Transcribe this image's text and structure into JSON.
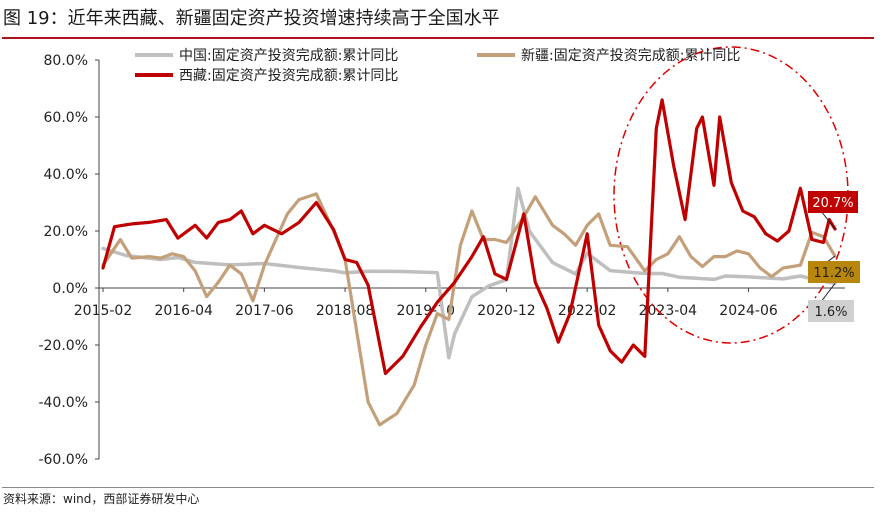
{
  "figure": {
    "title": "图 19：近年来西藏、新疆固定资产投资增速持续高于全国水平",
    "source": "资料来源：wind，西部证券研发中心"
  },
  "chart_data": {
    "type": "line",
    "title": "图 19：近年来西藏、新疆固定资产投资增速持续高于全国水平",
    "xlabel": "",
    "ylabel": "",
    "ylim": [
      -60,
      80
    ],
    "y_ticks": [
      "80.0%",
      "60.0%",
      "40.0%",
      "20.0%",
      "0.0%",
      "-20.0%",
      "-40.0%",
      "-60.0%"
    ],
    "x_range": [
      "2015-02",
      "2025-09"
    ],
    "x_ticks": [
      "2015-02",
      "2016-04",
      "2017-06",
      "2018-08",
      "2019-10",
      "2020-12",
      "2022-02",
      "2023-04",
      "2024-06"
    ],
    "legend_position": "top",
    "grid": false,
    "colors": {
      "china": "#bfbfbf",
      "xinjiang": "#c4a07a",
      "tibet": "#c00000",
      "ellipse": "#e00000"
    },
    "series": [
      {
        "name": "中国:固定资产投资完成额:累计同比",
        "key": "china",
        "points": [
          [
            "2015-02",
            13.9
          ],
          [
            "2015-06",
            11.4
          ],
          [
            "2015-12",
            10.0
          ],
          [
            "2016-03",
            10.7
          ],
          [
            "2016-06",
            9.0
          ],
          [
            "2016-12",
            8.1
          ],
          [
            "2017-06",
            8.6
          ],
          [
            "2017-12",
            7.2
          ],
          [
            "2018-06",
            6.0
          ],
          [
            "2018-08",
            5.3
          ],
          [
            "2018-12",
            5.9
          ],
          [
            "2019-06",
            5.8
          ],
          [
            "2019-12",
            5.4
          ],
          [
            "2020-02",
            -24.5
          ],
          [
            "2020-03",
            -16.1
          ],
          [
            "2020-06",
            -3.1
          ],
          [
            "2020-09",
            0.8
          ],
          [
            "2020-12",
            2.9
          ],
          [
            "2021-02",
            35.0
          ],
          [
            "2021-04",
            19.9
          ],
          [
            "2021-08",
            8.9
          ],
          [
            "2021-12",
            4.9
          ],
          [
            "2022-02",
            12.2
          ],
          [
            "2022-06",
            6.1
          ],
          [
            "2022-12",
            5.1
          ],
          [
            "2023-03",
            5.1
          ],
          [
            "2023-06",
            3.8
          ],
          [
            "2023-12",
            3.0
          ],
          [
            "2024-02",
            4.2
          ],
          [
            "2024-06",
            3.9
          ],
          [
            "2024-12",
            3.2
          ],
          [
            "2025-03",
            4.2
          ],
          [
            "2025-06",
            2.8
          ],
          [
            "2025-09",
            1.6
          ]
        ]
      },
      {
        "name": "新疆:固定资产投资完成额:累计同比",
        "key": "xinjiang",
        "points": [
          [
            "2015-02",
            8.0
          ],
          [
            "2015-05",
            17.0
          ],
          [
            "2015-07",
            10.5
          ],
          [
            "2015-10",
            11.0
          ],
          [
            "2015-12",
            10.5
          ],
          [
            "2016-02",
            12.0
          ],
          [
            "2016-04",
            11.0
          ],
          [
            "2016-06",
            6.0
          ],
          [
            "2016-08",
            -3.0
          ],
          [
            "2016-10",
            2.0
          ],
          [
            "2016-12",
            8.0
          ],
          [
            "2017-02",
            5.0
          ],
          [
            "2017-04",
            -4.5
          ],
          [
            "2017-06",
            8.0
          ],
          [
            "2017-08",
            17.0
          ],
          [
            "2017-10",
            26.0
          ],
          [
            "2017-12",
            31.0
          ],
          [
            "2018-03",
            33.0
          ],
          [
            "2018-06",
            20.0
          ],
          [
            "2018-08",
            10.0
          ],
          [
            "2018-10",
            -15.0
          ],
          [
            "2018-12",
            -40.0
          ],
          [
            "2019-02",
            -48.0
          ],
          [
            "2019-05",
            -44.0
          ],
          [
            "2019-08",
            -34.0
          ],
          [
            "2019-10",
            -20.0
          ],
          [
            "2019-12",
            -9.0
          ],
          [
            "2020-02",
            -11.0
          ],
          [
            "2020-04",
            15.0
          ],
          [
            "2020-06",
            27.0
          ],
          [
            "2020-08",
            17.0
          ],
          [
            "2020-10",
            17.0
          ],
          [
            "2020-12",
            16.0
          ],
          [
            "2021-03",
            25.0
          ],
          [
            "2021-05",
            32.0
          ],
          [
            "2021-08",
            22.0
          ],
          [
            "2021-10",
            19.0
          ],
          [
            "2021-12",
            15.0
          ],
          [
            "2022-02",
            22.0
          ],
          [
            "2022-04",
            26.0
          ],
          [
            "2022-06",
            15.0
          ],
          [
            "2022-09",
            14.5
          ],
          [
            "2022-12",
            6.0
          ],
          [
            "2023-02",
            10.0
          ],
          [
            "2023-04",
            12.0
          ],
          [
            "2023-06",
            18.0
          ],
          [
            "2023-08",
            11.0
          ],
          [
            "2023-10",
            7.5
          ],
          [
            "2023-12",
            11.0
          ],
          [
            "2024-02",
            11.0
          ],
          [
            "2024-04",
            13.0
          ],
          [
            "2024-06",
            12.0
          ],
          [
            "2024-08",
            7.0
          ],
          [
            "2024-10",
            4.0
          ],
          [
            "2024-12",
            7.0
          ],
          [
            "2025-03",
            8.0
          ],
          [
            "2025-05",
            19.5
          ],
          [
            "2025-07",
            18.0
          ],
          [
            "2025-09",
            11.2
          ]
        ]
      },
      {
        "name": "西藏:固定资产投资完成额:累计同比",
        "key": "tibet",
        "points": [
          [
            "2015-02",
            7.0
          ],
          [
            "2015-04",
            21.5
          ],
          [
            "2015-07",
            22.5
          ],
          [
            "2015-10",
            23.0
          ],
          [
            "2016-01",
            24.0
          ],
          [
            "2016-03",
            17.5
          ],
          [
            "2016-06",
            22.0
          ],
          [
            "2016-08",
            17.5
          ],
          [
            "2016-10",
            23.0
          ],
          [
            "2016-12",
            24.0
          ],
          [
            "2017-02",
            27.0
          ],
          [
            "2017-04",
            19.0
          ],
          [
            "2017-06",
            22.0
          ],
          [
            "2017-09",
            19.0
          ],
          [
            "2017-12",
            23.0
          ],
          [
            "2018-03",
            30.0
          ],
          [
            "2018-06",
            20.5
          ],
          [
            "2018-08",
            10.0
          ],
          [
            "2018-10",
            9.0
          ],
          [
            "2018-12",
            1.0
          ],
          [
            "2019-03",
            -30.0
          ],
          [
            "2019-06",
            -24.0
          ],
          [
            "2019-09",
            -14.0
          ],
          [
            "2019-12",
            -5.0
          ],
          [
            "2020-03",
            2.0
          ],
          [
            "2020-06",
            11.0
          ],
          [
            "2020-08",
            18.0
          ],
          [
            "2020-10",
            5.0
          ],
          [
            "2020-12",
            3.0
          ],
          [
            "2021-03",
            26.0
          ],
          [
            "2021-05",
            2.0
          ],
          [
            "2021-07",
            -7.0
          ],
          [
            "2021-09",
            -19.0
          ],
          [
            "2021-11",
            -9.0
          ],
          [
            "2022-02",
            19.0
          ],
          [
            "2022-04",
            -13.0
          ],
          [
            "2022-06",
            -22.0
          ],
          [
            "2022-08",
            -26.0
          ],
          [
            "2022-10",
            -20.0
          ],
          [
            "2022-12",
            -24.0
          ],
          [
            "2023-02",
            56.0
          ],
          [
            "2023-03",
            66.0
          ],
          [
            "2023-05",
            43.0
          ],
          [
            "2023-07",
            24.0
          ],
          [
            "2023-09",
            56.0
          ],
          [
            "2023-10",
            60.0
          ],
          [
            "2023-12",
            36.0
          ],
          [
            "2024-01",
            60.0
          ],
          [
            "2024-03",
            37.0
          ],
          [
            "2024-05",
            27.0
          ],
          [
            "2024-07",
            25.0
          ],
          [
            "2024-09",
            19.0
          ],
          [
            "2024-11",
            16.5
          ],
          [
            "2025-01",
            20.0
          ],
          [
            "2025-03",
            35.0
          ],
          [
            "2025-05",
            17.0
          ],
          [
            "2025-07",
            16.0
          ],
          [
            "2025-08",
            24.0
          ],
          [
            "2025-09",
            20.7
          ]
        ]
      }
    ],
    "end_labels": [
      {
        "series": "tibet",
        "text": "20.7%",
        "value": 20.7,
        "bg": "#c00000",
        "fg": "#ffffff"
      },
      {
        "series": "xinjiang",
        "text": "11.2%",
        "value": 11.2,
        "bg": "#b8860b",
        "fg": "#222222"
      },
      {
        "series": "china",
        "text": "1.6%",
        "value": 1.6,
        "bg": "#d0d0d0",
        "fg": "#222222"
      }
    ]
  }
}
